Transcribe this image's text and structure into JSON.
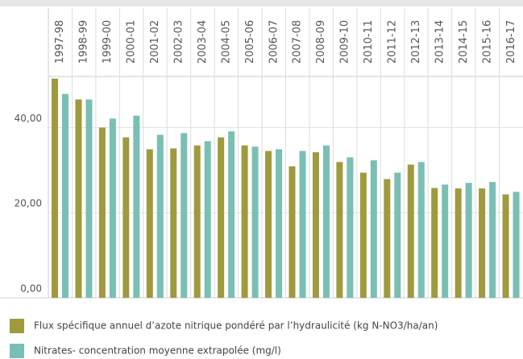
{
  "chart_data": {
    "type": "bar",
    "categories": [
      "1997-98",
      "1998-99",
      "1999-00",
      "2000-01",
      "2001-02",
      "2002-03",
      "2003-04",
      "2004-05",
      "2005-06",
      "2006-07",
      "2007-08",
      "2008-09",
      "2009-10",
      "2010-11",
      "2011-12",
      "2012-13",
      "2013-14",
      "2014-15",
      "2015-16",
      "2016-17"
    ],
    "series": [
      {
        "name": "Flux spécifique annuel d’azote nitrique pondéré par l’hydraulicité (kg N-NO3/ha/an)",
        "color": "#a09a3e",
        "values": [
          51.5,
          46.6,
          40.0,
          37.7,
          34.9,
          35.1,
          35.8,
          37.7,
          35.8,
          34.5,
          30.9,
          34.2,
          31.9,
          29.4,
          27.9,
          31.3,
          25.8,
          25.7,
          25.7,
          24.3
        ]
      },
      {
        "name": "Nitrates- concentration moyenne extrapolée (mg/l)",
        "color": "#79bfb4",
        "values": [
          47.9,
          46.6,
          42.1,
          42.8,
          38.3,
          38.7,
          36.8,
          39.1,
          35.5,
          34.9,
          34.5,
          35.8,
          33.0,
          32.3,
          29.4,
          31.9,
          26.6,
          27.0,
          27.2,
          24.9
        ]
      }
    ],
    "ylim": [
      0,
      52
    ],
    "yticks": [
      {
        "value": 0,
        "label": "0,00"
      },
      {
        "value": 20,
        "label": "20,00"
      },
      {
        "value": 40,
        "label": "40,00"
      }
    ],
    "grid": true
  }
}
